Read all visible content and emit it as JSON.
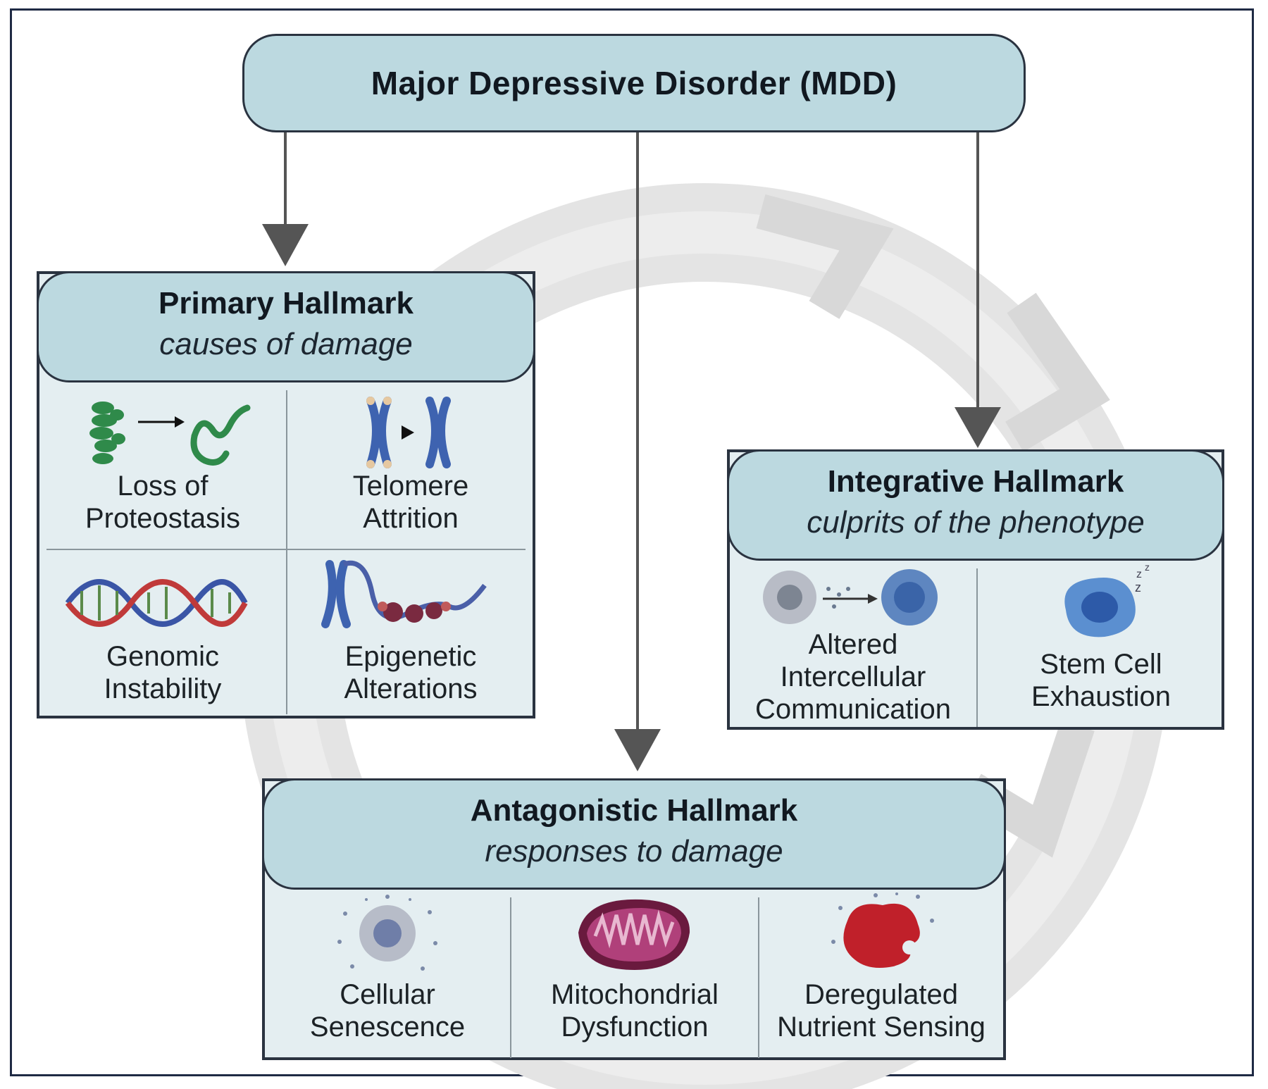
{
  "top": {
    "title": "Major Depressive Disorder (MDD)"
  },
  "primary": {
    "title": "Primary Hallmark",
    "subtitle": "causes of damage",
    "items": [
      {
        "line1": "Loss of",
        "line2": "Proteostasis",
        "icon": "protein-misfolding-icon"
      },
      {
        "line1": "Telomere",
        "line2": "Attrition",
        "icon": "chromosome-telomere-icon"
      },
      {
        "line1": "Genomic",
        "line2": "Instability",
        "icon": "dna-helix-icon"
      },
      {
        "line1": "Epigenetic",
        "line2": "Alterations",
        "icon": "chromatin-icon"
      }
    ]
  },
  "integrative": {
    "title": "Integrative Hallmark",
    "subtitle": "culprits of the phenotype",
    "items": [
      {
        "line1": "Altered",
        "line2": "Intercellular",
        "line3": "Communication",
        "icon": "cell-signaling-icon"
      },
      {
        "line1": "Stem Cell",
        "line2": "Exhaustion",
        "icon": "stem-cell-icon"
      }
    ]
  },
  "antagonistic": {
    "title": "Antagonistic Hallmark",
    "subtitle": "responses to damage",
    "items": [
      {
        "line1": "Cellular",
        "line2": "Senescence",
        "icon": "senescent-cell-icon"
      },
      {
        "line1": "Mitochondrial",
        "line2": "Dysfunction",
        "icon": "mitochondrion-icon"
      },
      {
        "line1": "Deregulated",
        "line2": "Nutrient Sensing",
        "icon": "nutrient-blob-icon"
      }
    ]
  },
  "colors": {
    "header_fill": "#bcd9e0",
    "panel_fill": "#e4eef1",
    "arrow": "#555555",
    "ring": "#e3e3e3"
  }
}
